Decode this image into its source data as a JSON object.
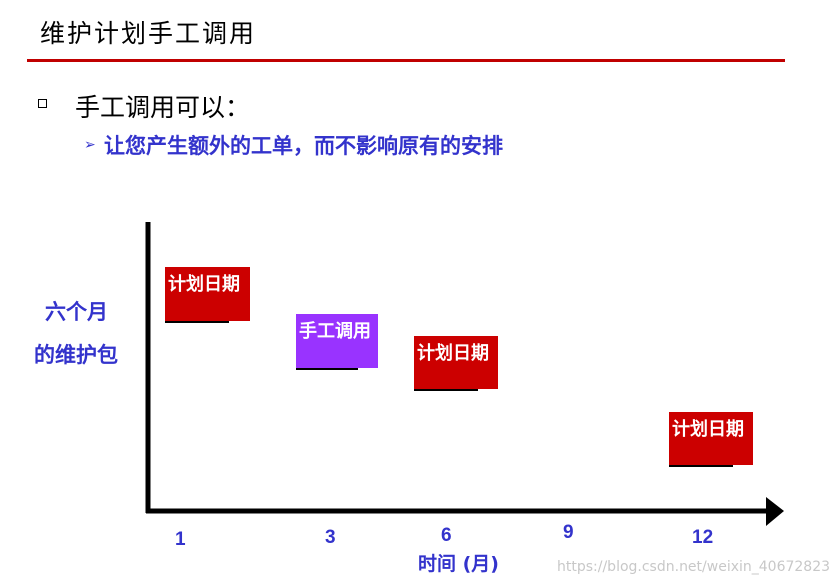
{
  "header": {
    "title": "维护计划手工调用"
  },
  "bullet": {
    "text": "手工调用可以："
  },
  "sub_bullet": {
    "arrow": "➢",
    "text": "让您产生额外的工单，而不影响原有的安排"
  },
  "diagram": {
    "y_label_line1": "六个月",
    "y_label_line2": "的维护包",
    "x_axis_label": "时间 (月)",
    "x_ticks": [
      "1",
      "3",
      "6",
      "9",
      "12"
    ],
    "boxes": [
      {
        "label": "计划日期",
        "color": "#cc0000"
      },
      {
        "label": "手工调用",
        "color": "#9933ff"
      },
      {
        "label": "计划日期",
        "color": "#cc0000"
      },
      {
        "label": "计划日期",
        "color": "#cc0000"
      }
    ],
    "axis_color": "#000000",
    "text_color": "#3333cc"
  },
  "watermark": "https://blog.csdn.net/weixin_40672823"
}
